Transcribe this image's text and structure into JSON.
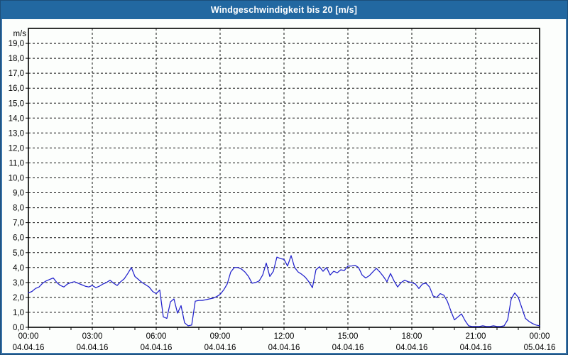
{
  "window": {
    "title": "Windgeschwindigkeit bis 20 [m/s]"
  },
  "colors": {
    "titlebar": "#2268a1",
    "window_border": "#3a74a8",
    "window_border_outer": "#1c4d79",
    "plot_line": "#2121cc",
    "grid": "#111111",
    "axis": "#000000",
    "label_text": "#000000",
    "plot_background": "#fcfefc"
  },
  "chart_data": {
    "type": "line",
    "title": "Windgeschwindigkeit bis 20 [m/s]",
    "unit_label": "m/s",
    "ylim": [
      0,
      20
    ],
    "y_tick_step": 1,
    "y_tick_labels": [
      "0,0",
      "1,0",
      "2,0",
      "3,0",
      "4,0",
      "5,0",
      "6,0",
      "7,0",
      "8,0",
      "9,0",
      "10,0",
      "11,0",
      "12,0",
      "13,0",
      "14,0",
      "15,0",
      "16,0",
      "17,0",
      "18,0",
      "19,0"
    ],
    "grid": {
      "horizontal": "dashed",
      "vertical": "dashed",
      "minor_x_ticks_every_hours": 1
    },
    "x_axis": {
      "span_hours": 24,
      "major_tick_every_hours": 3,
      "major_ticks": [
        {
          "time": "00:00",
          "date": "04.04.16"
        },
        {
          "time": "03:00",
          "date": "04.04.16"
        },
        {
          "time": "06:00",
          "date": "04.04.16"
        },
        {
          "time": "09:00",
          "date": "04.04.16"
        },
        {
          "time": "12:00",
          "date": "04.04.16"
        },
        {
          "time": "15:00",
          "date": "04.04.16"
        },
        {
          "time": "18:00",
          "date": "04.04.16"
        },
        {
          "time": "21:00",
          "date": "04.04.16"
        },
        {
          "time": "00:00",
          "date": "05.04.16"
        }
      ]
    },
    "legend": "none",
    "series": [
      {
        "name": "Windgeschwindigkeit",
        "color": "#2121cc",
        "start_time": "00:00",
        "interval_minutes": 10,
        "values": [
          2.3,
          2.4,
          2.6,
          2.7,
          2.95,
          3.1,
          3.2,
          3.3,
          3.0,
          2.8,
          2.7,
          2.9,
          3.0,
          3.05,
          2.95,
          2.85,
          2.75,
          2.7,
          2.8,
          2.65,
          2.75,
          2.9,
          3.0,
          3.15,
          2.95,
          2.8,
          3.05,
          3.25,
          3.6,
          4.0,
          3.4,
          3.2,
          3.0,
          2.85,
          2.7,
          2.4,
          2.25,
          2.5,
          0.7,
          0.6,
          1.7,
          1.9,
          0.95,
          1.45,
          0.3,
          0.1,
          0.15,
          1.75,
          1.8,
          1.8,
          1.85,
          1.9,
          1.95,
          2.05,
          2.2,
          2.5,
          2.9,
          3.7,
          4.0,
          4.0,
          3.9,
          3.7,
          3.4,
          2.95,
          3.0,
          3.1,
          3.5,
          4.3,
          3.4,
          3.75,
          4.7,
          4.6,
          4.55,
          4.1,
          4.8,
          4.0,
          3.7,
          3.55,
          3.35,
          3.05,
          2.65,
          3.85,
          4.05,
          3.75,
          4.0,
          3.5,
          3.75,
          3.65,
          3.85,
          3.8,
          4.1,
          4.1,
          4.15,
          4.0,
          3.5,
          3.3,
          3.45,
          3.7,
          3.95,
          3.7,
          3.4,
          3.05,
          3.6,
          3.1,
          2.7,
          3.0,
          3.15,
          3.05,
          3.0,
          2.9,
          2.6,
          2.9,
          2.95,
          2.7,
          2.1,
          2.0,
          2.25,
          2.15,
          1.75,
          1.1,
          0.5,
          0.7,
          0.9,
          0.45,
          0.1,
          0.05,
          0.05,
          0.05,
          0.1,
          0.05,
          0.05,
          0.1,
          0.05,
          0.05,
          0.1,
          0.5,
          1.9,
          2.3,
          2.0,
          1.3,
          0.6,
          0.4,
          0.25,
          0.15,
          0.1
        ]
      }
    ]
  }
}
